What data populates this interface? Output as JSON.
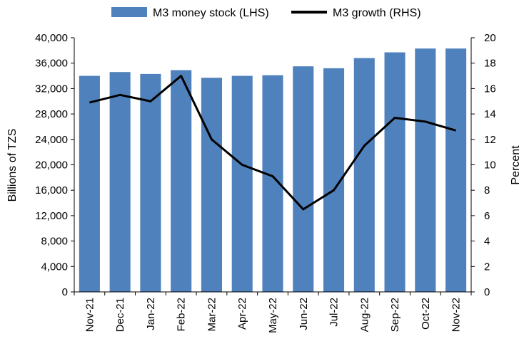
{
  "chart_data": {
    "type": "bar",
    "categories": [
      "Nov-21",
      "Dec-21",
      "Jan-22",
      "Feb-22",
      "Mar-22",
      "Apr-22",
      "May-22",
      "Jun-22",
      "Jul-22",
      "Aug-22",
      "Sep-22",
      "Oct-22",
      "Nov-22"
    ],
    "series": [
      {
        "name": "M3 money stock (LHS)",
        "type": "bar",
        "axis": "left",
        "color": "#4f81bd",
        "values": [
          34000,
          34600,
          34300,
          34900,
          33700,
          34000,
          34100,
          35500,
          35200,
          36800,
          37700,
          38300,
          38300
        ]
      },
      {
        "name": "M3 growth (RHS)",
        "type": "line",
        "axis": "right",
        "color": "#000000",
        "values": [
          14.9,
          15.5,
          15.0,
          17.0,
          12.0,
          10.0,
          9.1,
          6.5,
          8.0,
          11.5,
          13.7,
          13.4,
          12.7
        ]
      }
    ],
    "left_axis": {
      "label": "Billions of TZS",
      "ylim": [
        0,
        40000
      ],
      "ticks": [
        "0",
        "4,000",
        "8,000",
        "12,000",
        "16,000",
        "20,000",
        "24,000",
        "28,000",
        "32,000",
        "36,000",
        "40,000"
      ]
    },
    "right_axis": {
      "label": "Percent",
      "ylim": [
        0,
        20
      ],
      "ticks": [
        "0",
        "2",
        "4",
        "6",
        "8",
        "10",
        "12",
        "14",
        "16",
        "18",
        "20"
      ]
    },
    "grid": false,
    "legend_position": "top"
  }
}
